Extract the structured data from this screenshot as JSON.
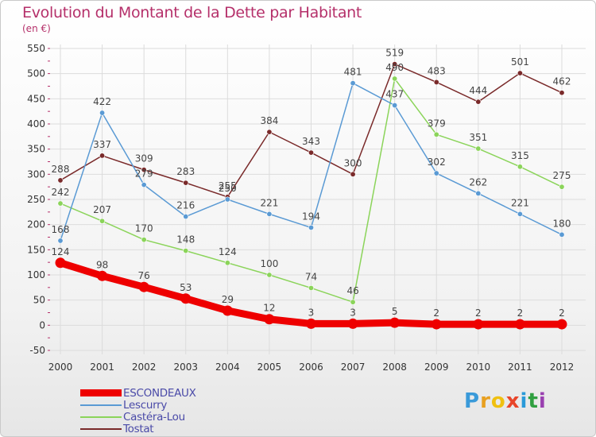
{
  "title": "Evolution du Montant de la Dette par Habitant",
  "subtitle": "(en €)",
  "logo": {
    "text": "Proxiti",
    "letter_colors": [
      "#3a9ad9",
      "#e8a020",
      "#f0c010",
      "#e8452a",
      "#2a9ad9",
      "#30a040",
      "#9a40b0"
    ]
  },
  "chart_data": {
    "type": "line",
    "title": "Evolution du Montant de la Dette par Habitant",
    "subtitle": "(en €)",
    "x": [
      "2000",
      "2001",
      "2002",
      "2003",
      "2004",
      "2005",
      "2006",
      "2007",
      "2008",
      "2009",
      "2010",
      "2011",
      "2012"
    ],
    "ylim": [
      -50,
      550
    ],
    "yticks": [
      -50,
      0,
      50,
      100,
      150,
      200,
      250,
      300,
      350,
      400,
      450,
      500,
      550
    ],
    "grid": true,
    "legend_position": "bottom-left",
    "series": [
      {
        "name": "Tostat",
        "color": "#7a2a2a",
        "values": [
          288,
          337,
          309,
          283,
          255,
          384,
          343,
          300,
          519,
          483,
          444,
          501,
          462
        ]
      },
      {
        "name": "Castéra-Lou",
        "color": "#8bd45a",
        "values": [
          242,
          207,
          170,
          148,
          124,
          100,
          74,
          46,
          490,
          379,
          351,
          315,
          275
        ]
      },
      {
        "name": "Lescurry",
        "color": "#5a9ad4",
        "values": [
          168,
          422,
          279,
          216,
          250,
          221,
          194,
          481,
          437,
          302,
          262,
          221,
          180
        ]
      },
      {
        "name": "ESCONDEAUX",
        "color": "#ee0000",
        "values": [
          124,
          98,
          76,
          53,
          29,
          12,
          3,
          3,
          5,
          2,
          2,
          2,
          2
        ]
      }
    ]
  }
}
